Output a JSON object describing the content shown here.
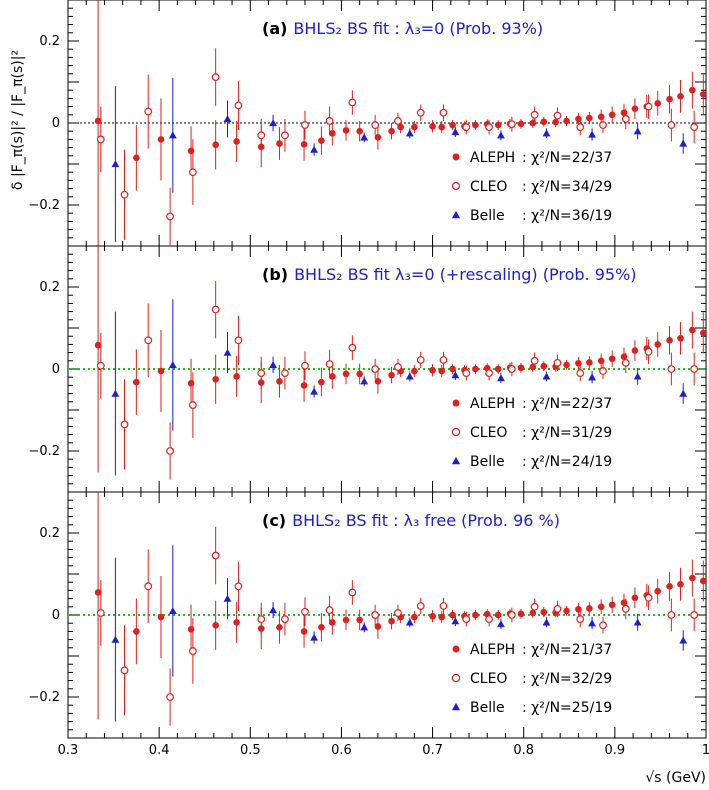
{
  "chart_data": {
    "type": "scatter",
    "xlabel": "√s (GeV)",
    "ylabel": "δ |F_π(s)|² / |F_π(s)|²",
    "xlim": [
      0.3,
      1.0
    ],
    "ylim": [
      -0.3,
      0.3
    ],
    "x_ticks": [
      "0.3",
      "0.4",
      "0.5",
      "0.6",
      "0.7",
      "0.8",
      "0.9",
      "1"
    ],
    "y_ticks": [
      "−0.2",
      "0",
      "0.2"
    ],
    "colors": {
      "aleph": "#e02020",
      "cleo": "#e02020",
      "belle": "#1e1ed2",
      "zero_a": "#000000",
      "zero_bc": "#20c020"
    },
    "panels": [
      {
        "tag": "(a)",
        "title": "BHLS₂  BS fit : λ₃=0 (Prob. 93%)",
        "zero_line": "dotted-black",
        "legend": [
          {
            "name": "ALEPH",
            "chi": ": χ²/N=22/37"
          },
          {
            "name": "CLEO",
            "chi": ": χ²/N=34/29"
          },
          {
            "name": "Belle",
            "chi": ": χ²/N=36/19"
          }
        ],
        "series": [
          {
            "name": "ALEPH",
            "marker": "filled-circle",
            "x": [
              0.333,
              0.375,
              0.402,
              0.435,
              0.462,
              0.485,
              0.512,
              0.532,
              0.559,
              0.578,
              0.59,
              0.605,
              0.62,
              0.64,
              0.655,
              0.665,
              0.68,
              0.7,
              0.71,
              0.722,
              0.735,
              0.747,
              0.76,
              0.772,
              0.785,
              0.797,
              0.81,
              0.822,
              0.835,
              0.847,
              0.86,
              0.872,
              0.885,
              0.897,
              0.91,
              0.922,
              0.935,
              0.947,
              0.96,
              0.972,
              0.985,
              0.997
            ],
            "y": [
              0.005,
              -0.085,
              -0.04,
              -0.068,
              -0.053,
              -0.045,
              -0.058,
              -0.05,
              -0.052,
              -0.043,
              -0.025,
              -0.018,
              -0.02,
              -0.035,
              -0.02,
              -0.01,
              -0.01,
              -0.008,
              -0.01,
              -0.005,
              -0.008,
              -0.005,
              -0.003,
              -0.005,
              -0.002,
              -0.002,
              0.0,
              0.003,
              0.002,
              0.005,
              0.01,
              0.012,
              0.015,
              0.02,
              0.025,
              0.035,
              0.04,
              0.048,
              0.058,
              0.065,
              0.08,
              0.07
            ],
            "err": [
              0.31,
              0.08,
              0.1,
              0.06,
              0.06,
              0.05,
              0.05,
              0.04,
              0.04,
              0.035,
              0.03,
              0.025,
              0.025,
              0.03,
              0.02,
              0.015,
              0.015,
              0.015,
              0.015,
              0.012,
              0.012,
              0.012,
              0.012,
              0.012,
              0.012,
              0.012,
              0.012,
              0.012,
              0.012,
              0.012,
              0.015,
              0.015,
              0.018,
              0.02,
              0.022,
              0.025,
              0.028,
              0.03,
              0.035,
              0.04,
              0.045,
              0.05
            ]
          },
          {
            "name": "CLEO",
            "marker": "open-circle",
            "x": [
              0.336,
              0.362,
              0.388,
              0.412,
              0.437,
              0.462,
              0.487,
              0.512,
              0.538,
              0.56,
              0.587,
              0.612,
              0.637,
              0.662,
              0.687,
              0.712,
              0.737,
              0.762,
              0.787,
              0.812,
              0.837,
              0.862,
              0.887,
              0.912,
              0.937,
              0.962,
              0.987
            ],
            "y": [
              -0.04,
              -0.175,
              0.028,
              -0.228,
              -0.12,
              0.112,
              0.043,
              -0.03,
              -0.03,
              -0.005,
              0.005,
              0.05,
              -0.005,
              0.005,
              0.025,
              0.025,
              -0.01,
              -0.01,
              -0.003,
              0.02,
              0.018,
              -0.01,
              -0.005,
              0.01,
              0.04,
              -0.005,
              -0.01
            ],
            "err": [
              0.08,
              0.11,
              0.09,
              0.07,
              0.08,
              0.07,
              0.06,
              0.04,
              0.04,
              0.035,
              0.035,
              0.03,
              0.025,
              0.02,
              0.02,
              0.02,
              0.018,
              0.018,
              0.018,
              0.02,
              0.02,
              0.02,
              0.02,
              0.025,
              0.03,
              0.04,
              0.04
            ]
          },
          {
            "name": "Belle",
            "marker": "filled-triangle",
            "x": [
              0.352,
              0.415,
              0.475,
              0.525,
              0.57,
              0.625,
              0.675,
              0.725,
              0.775,
              0.825,
              0.875,
              0.925,
              0.975
            ],
            "y": [
              -0.1,
              -0.03,
              0.01,
              0.0,
              -0.065,
              -0.035,
              -0.025,
              -0.022,
              -0.03,
              -0.025,
              -0.028,
              -0.02,
              -0.05
            ],
            "err": [
              0.19,
              0.14,
              0.045,
              0.02,
              0.015,
              0.012,
              0.012,
              0.012,
              0.012,
              0.012,
              0.015,
              0.02,
              0.025
            ]
          }
        ]
      },
      {
        "tag": "(b)",
        "title": "BHLS₂  BS fit λ₃=0 (+rescaling) (Prob. 95%)",
        "zero_line": "dotted-green",
        "legend": [
          {
            "name": "ALEPH",
            "chi": ": χ²/N=22/37"
          },
          {
            "name": "CLEO",
            "chi": ": χ²/N=31/29"
          },
          {
            "name": "Belle",
            "chi": ": χ²/N=24/19"
          }
        ],
        "series": [
          {
            "name": "ALEPH",
            "marker": "filled-circle",
            "x": [
              0.333,
              0.375,
              0.402,
              0.435,
              0.462,
              0.485,
              0.512,
              0.532,
              0.559,
              0.578,
              0.59,
              0.605,
              0.62,
              0.64,
              0.655,
              0.665,
              0.68,
              0.7,
              0.71,
              0.722,
              0.735,
              0.747,
              0.76,
              0.772,
              0.785,
              0.797,
              0.81,
              0.822,
              0.835,
              0.847,
              0.86,
              0.872,
              0.885,
              0.897,
              0.91,
              0.922,
              0.935,
              0.947,
              0.96,
              0.972,
              0.985,
              0.997
            ],
            "y": [
              0.058,
              -0.032,
              -0.005,
              -0.035,
              -0.025,
              -0.018,
              -0.033,
              -0.03,
              -0.04,
              -0.032,
              -0.018,
              -0.012,
              -0.012,
              -0.03,
              -0.015,
              -0.005,
              -0.005,
              -0.003,
              -0.005,
              0.0,
              -0.003,
              0.0,
              0.002,
              0.0,
              0.003,
              0.003,
              0.005,
              0.007,
              0.006,
              0.01,
              0.014,
              0.016,
              0.02,
              0.025,
              0.03,
              0.045,
              0.05,
              0.06,
              0.07,
              0.075,
              0.095,
              0.088
            ],
            "err": [
              0.31,
              0.08,
              0.1,
              0.06,
              0.06,
              0.05,
              0.05,
              0.04,
              0.04,
              0.035,
              0.03,
              0.025,
              0.025,
              0.03,
              0.02,
              0.015,
              0.015,
              0.015,
              0.015,
              0.012,
              0.012,
              0.012,
              0.012,
              0.012,
              0.012,
              0.012,
              0.012,
              0.012,
              0.012,
              0.012,
              0.015,
              0.015,
              0.018,
              0.02,
              0.022,
              0.025,
              0.028,
              0.03,
              0.035,
              0.04,
              0.045,
              0.05
            ]
          },
          {
            "name": "CLEO",
            "marker": "open-circle",
            "x": [
              0.336,
              0.362,
              0.388,
              0.412,
              0.437,
              0.462,
              0.487,
              0.512,
              0.538,
              0.56,
              0.587,
              0.612,
              0.637,
              0.662,
              0.687,
              0.712,
              0.737,
              0.762,
              0.787,
              0.812,
              0.837,
              0.862,
              0.887,
              0.912,
              0.937,
              0.962,
              0.987
            ],
            "y": [
              0.008,
              -0.135,
              0.07,
              -0.2,
              -0.088,
              0.145,
              0.07,
              -0.01,
              -0.01,
              0.008,
              0.012,
              0.052,
              0.0,
              0.005,
              0.022,
              0.022,
              -0.01,
              -0.01,
              0.0,
              0.02,
              0.015,
              -0.01,
              -0.005,
              0.015,
              0.042,
              0.0,
              0.0
            ],
            "err": [
              0.08,
              0.11,
              0.09,
              0.07,
              0.08,
              0.07,
              0.06,
              0.04,
              0.04,
              0.035,
              0.035,
              0.03,
              0.025,
              0.02,
              0.02,
              0.02,
              0.018,
              0.018,
              0.018,
              0.02,
              0.02,
              0.02,
              0.02,
              0.025,
              0.03,
              0.04,
              0.04
            ]
          },
          {
            "name": "Belle",
            "marker": "filled-triangle",
            "x": [
              0.352,
              0.415,
              0.475,
              0.525,
              0.57,
              0.625,
              0.675,
              0.725,
              0.775,
              0.825,
              0.875,
              0.925,
              0.975
            ],
            "y": [
              -0.06,
              0.01,
              0.04,
              0.01,
              -0.055,
              -0.03,
              -0.018,
              -0.015,
              -0.022,
              -0.018,
              -0.02,
              -0.018,
              -0.06
            ],
            "err": [
              0.2,
              0.16,
              0.05,
              0.02,
              0.015,
              0.012,
              0.012,
              0.012,
              0.012,
              0.012,
              0.015,
              0.02,
              0.025
            ]
          }
        ]
      },
      {
        "tag": "(c)",
        "title": "BHLS₂  BS fit : λ₃ free (Prob. 96 %)",
        "zero_line": "dotted-green",
        "legend": [
          {
            "name": "ALEPH",
            "chi": ": χ²/N=21/37"
          },
          {
            "name": "CLEO",
            "chi": ": χ²/N=32/29"
          },
          {
            "name": "Belle",
            "chi": ": χ²/N=25/19"
          }
        ],
        "series": [
          {
            "name": "ALEPH",
            "marker": "filled-circle",
            "x": [
              0.333,
              0.375,
              0.402,
              0.435,
              0.462,
              0.485,
              0.512,
              0.532,
              0.559,
              0.578,
              0.59,
              0.605,
              0.62,
              0.64,
              0.655,
              0.665,
              0.68,
              0.7,
              0.71,
              0.722,
              0.735,
              0.747,
              0.76,
              0.772,
              0.785,
              0.797,
              0.81,
              0.822,
              0.835,
              0.847,
              0.86,
              0.872,
              0.885,
              0.897,
              0.91,
              0.922,
              0.935,
              0.947,
              0.96,
              0.972,
              0.985,
              0.997
            ],
            "y": [
              0.055,
              -0.04,
              -0.005,
              -0.035,
              -0.025,
              -0.018,
              -0.033,
              -0.03,
              -0.04,
              -0.03,
              -0.018,
              -0.012,
              -0.012,
              -0.028,
              -0.015,
              -0.005,
              -0.005,
              -0.003,
              -0.005,
              0.0,
              -0.003,
              0.0,
              0.002,
              0.0,
              0.003,
              0.003,
              0.005,
              0.007,
              0.006,
              0.01,
              0.014,
              0.016,
              0.02,
              0.025,
              0.03,
              0.042,
              0.048,
              0.058,
              0.07,
              0.075,
              0.09,
              0.083
            ],
            "err": [
              0.31,
              0.08,
              0.1,
              0.06,
              0.06,
              0.05,
              0.05,
              0.04,
              0.04,
              0.035,
              0.03,
              0.025,
              0.025,
              0.03,
              0.02,
              0.015,
              0.015,
              0.015,
              0.015,
              0.012,
              0.012,
              0.012,
              0.012,
              0.012,
              0.012,
              0.012,
              0.012,
              0.012,
              0.012,
              0.012,
              0.015,
              0.015,
              0.018,
              0.02,
              0.022,
              0.025,
              0.028,
              0.03,
              0.035,
              0.04,
              0.045,
              0.05
            ]
          },
          {
            "name": "CLEO",
            "marker": "open-circle",
            "x": [
              0.336,
              0.362,
              0.388,
              0.412,
              0.437,
              0.462,
              0.487,
              0.512,
              0.538,
              0.56,
              0.587,
              0.612,
              0.637,
              0.662,
              0.687,
              0.712,
              0.737,
              0.762,
              0.787,
              0.812,
              0.837,
              0.862,
              0.887,
              0.912,
              0.937,
              0.962,
              0.987
            ],
            "y": [
              0.005,
              -0.135,
              0.07,
              -0.2,
              -0.088,
              0.145,
              0.07,
              -0.01,
              -0.01,
              0.008,
              0.012,
              0.055,
              0.0,
              0.005,
              0.022,
              0.022,
              -0.01,
              -0.01,
              0.0,
              0.02,
              0.015,
              -0.01,
              -0.025,
              0.015,
              0.042,
              0.0,
              0.0
            ],
            "err": [
              0.08,
              0.11,
              0.09,
              0.07,
              0.08,
              0.07,
              0.06,
              0.04,
              0.04,
              0.035,
              0.035,
              0.03,
              0.025,
              0.02,
              0.02,
              0.02,
              0.018,
              0.018,
              0.018,
              0.02,
              0.02,
              0.02,
              0.02,
              0.025,
              0.03,
              0.04,
              0.04
            ]
          },
          {
            "name": "Belle",
            "marker": "filled-triangle",
            "x": [
              0.352,
              0.415,
              0.475,
              0.525,
              0.57,
              0.625,
              0.675,
              0.725,
              0.775,
              0.825,
              0.875,
              0.925,
              0.975
            ],
            "y": [
              -0.06,
              0.01,
              0.04,
              0.012,
              -0.055,
              -0.03,
              -0.018,
              -0.015,
              -0.022,
              -0.018,
              -0.02,
              -0.018,
              -0.062
            ],
            "err": [
              0.2,
              0.16,
              0.05,
              0.02,
              0.015,
              0.012,
              0.012,
              0.012,
              0.012,
              0.012,
              0.015,
              0.02,
              0.025
            ]
          }
        ]
      }
    ]
  }
}
